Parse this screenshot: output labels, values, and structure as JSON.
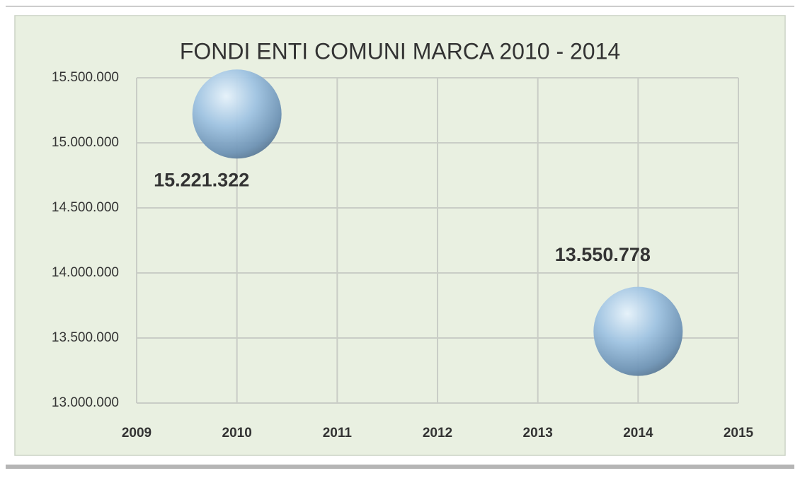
{
  "chart_data": {
    "type": "scatter",
    "title": "FONDI ENTI COMUNI MARCA 2010 - 2014",
    "series": [
      {
        "color": "#8fb4d6",
        "x": [
          2010,
          2014
        ],
        "values": [
          15221322,
          13550778
        ],
        "value_labels": [
          "15.221.322",
          "13.550.778"
        ]
      }
    ],
    "xlim": [
      2009,
      2015
    ],
    "xticks": [
      2009,
      2010,
      2011,
      2012,
      2013,
      2014,
      2015
    ],
    "ylim": [
      13000000,
      15500000
    ],
    "yticks": [
      {
        "value": 13000000,
        "label": "13.000.000"
      },
      {
        "value": 13500000,
        "label": "13.500.000"
      },
      {
        "value": 14000000,
        "label": "14.000.000"
      },
      {
        "value": 14500000,
        "label": "14.500.000"
      },
      {
        "value": 15000000,
        "label": "15.000.000"
      },
      {
        "value": 15500000,
        "label": "15.500.000"
      }
    ],
    "grid": true
  }
}
